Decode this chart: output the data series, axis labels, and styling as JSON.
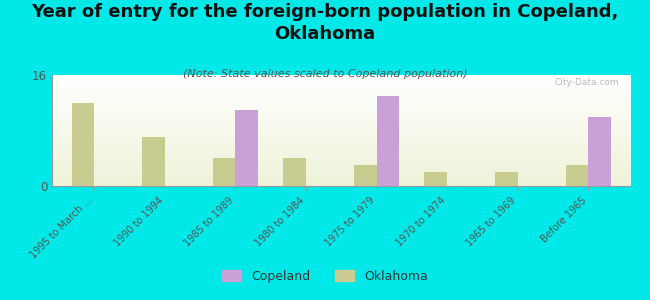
{
  "title": "Year of entry for the foreign-born population in Copeland,\nOklahoma",
  "subtitle": "(Note: State values scaled to Copeland population)",
  "categories": [
    "1995 to March ...",
    "1990 to 1994",
    "1985 to 1989",
    "1980 to 1984",
    "1975 to 1979",
    "1970 to 1974",
    "1965 to 1969",
    "Before 1965"
  ],
  "copeland_values": [
    0,
    0,
    11,
    0,
    13,
    0,
    0,
    10
  ],
  "oklahoma_values": [
    12,
    7,
    4,
    4,
    3,
    2,
    2,
    3
  ],
  "copeland_color": "#c9a0d8",
  "oklahoma_color": "#c8cc90",
  "background_color": "#00e8e8",
  "ylim": [
    0,
    16
  ],
  "yticks": [
    0,
    16
  ],
  "bar_width": 0.32,
  "title_fontsize": 13,
  "subtitle_fontsize": 8,
  "tick_label_fontsize": 7,
  "legend_fontsize": 9,
  "watermark": "City-Data.com"
}
